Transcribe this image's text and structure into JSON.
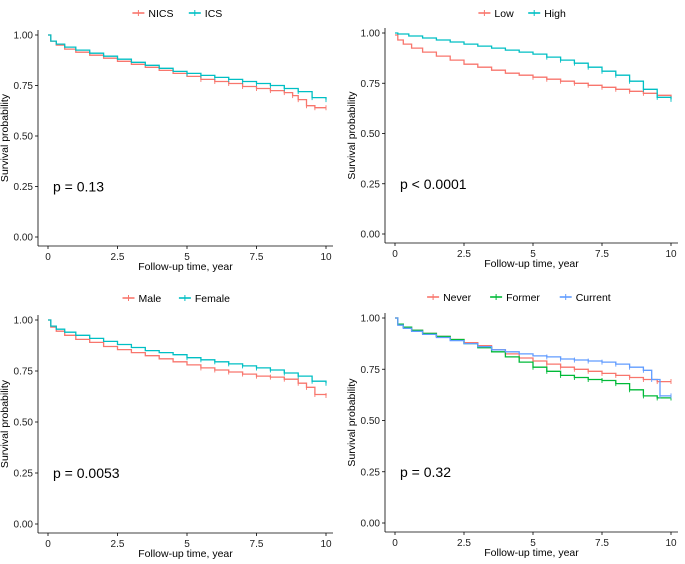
{
  "chart_data": [
    {
      "type": "line",
      "subtype": "kaplan-meier",
      "title": "",
      "xlabel": "Follow-up time, year",
      "ylabel": "Survival probability",
      "xlim": [
        0,
        10
      ],
      "ylim": [
        0,
        1
      ],
      "xticks": [
        0,
        2.5,
        5,
        7.5,
        10
      ],
      "xtick_labels": [
        "0",
        "2.5",
        "5",
        "7.5",
        "10"
      ],
      "yticks": [
        0,
        0.25,
        0.5,
        0.75,
        1
      ],
      "ytick_labels": [
        "0.00",
        "0.25",
        "0.50",
        "0.75",
        "1.00"
      ],
      "legend_position": "top",
      "annotation": "p = 0.13",
      "series": [
        {
          "name": "NICS",
          "color": "#F8766D",
          "x": [
            0,
            0.1,
            0.3,
            0.6,
            1.0,
            1.5,
            2.0,
            2.5,
            3.0,
            3.5,
            4.0,
            4.5,
            5.0,
            5.5,
            6.0,
            6.5,
            7.0,
            7.5,
            8.0,
            8.5,
            8.8,
            9.0,
            9.3,
            9.6,
            10.0
          ],
          "y": [
            1.0,
            0.97,
            0.95,
            0.93,
            0.915,
            0.9,
            0.885,
            0.87,
            0.855,
            0.84,
            0.825,
            0.81,
            0.795,
            0.78,
            0.77,
            0.76,
            0.745,
            0.735,
            0.725,
            0.715,
            0.7,
            0.68,
            0.65,
            0.64,
            0.64
          ]
        },
        {
          "name": "ICS",
          "color": "#00BFC4",
          "x": [
            0,
            0.1,
            0.3,
            0.6,
            1.0,
            1.5,
            2.0,
            2.5,
            3.0,
            3.5,
            4.0,
            4.5,
            5.0,
            5.5,
            6.0,
            6.5,
            7.0,
            7.5,
            8.0,
            8.5,
            9.0,
            9.5,
            10.0
          ],
          "y": [
            1.0,
            0.97,
            0.955,
            0.94,
            0.925,
            0.91,
            0.895,
            0.88,
            0.865,
            0.85,
            0.835,
            0.82,
            0.81,
            0.8,
            0.79,
            0.78,
            0.77,
            0.76,
            0.75,
            0.735,
            0.72,
            0.69,
            0.68
          ]
        }
      ]
    },
    {
      "type": "line",
      "subtype": "kaplan-meier",
      "title": "",
      "xlabel": "Follow-up time, year",
      "ylabel": "Survival probability",
      "xlim": [
        0,
        10
      ],
      "ylim": [
        0,
        1
      ],
      "xticks": [
        0,
        2.5,
        5,
        7.5,
        10
      ],
      "xtick_labels": [
        "0",
        "2.5",
        "5",
        "7.5",
        "10"
      ],
      "yticks": [
        0,
        0.25,
        0.5,
        0.75,
        1
      ],
      "ytick_labels": [
        "0.00",
        "0.25",
        "0.50",
        "0.75",
        "1.00"
      ],
      "legend_position": "top",
      "annotation": "p < 0.0001",
      "series": [
        {
          "name": "Low",
          "color": "#F8766D",
          "x": [
            0,
            0.1,
            0.3,
            0.6,
            1.0,
            1.5,
            2.0,
            2.5,
            3.0,
            3.5,
            4.0,
            4.5,
            5.0,
            5.5,
            6.0,
            6.5,
            7.0,
            7.5,
            8.0,
            8.5,
            9.0,
            9.5,
            10.0
          ],
          "y": [
            0.99,
            0.965,
            0.945,
            0.925,
            0.905,
            0.885,
            0.865,
            0.845,
            0.83,
            0.815,
            0.8,
            0.79,
            0.78,
            0.77,
            0.76,
            0.75,
            0.74,
            0.73,
            0.72,
            0.71,
            0.7,
            0.69,
            0.68
          ]
        },
        {
          "name": "High",
          "color": "#00BFC4",
          "x": [
            0,
            0.1,
            0.5,
            1.0,
            1.5,
            2.0,
            2.5,
            3.0,
            3.5,
            4.0,
            4.5,
            5.0,
            5.5,
            6.0,
            6.5,
            7.0,
            7.5,
            8.0,
            8.5,
            9.0,
            9.5,
            10.0
          ],
          "y": [
            1.0,
            0.995,
            0.985,
            0.975,
            0.965,
            0.955,
            0.945,
            0.935,
            0.925,
            0.915,
            0.905,
            0.895,
            0.88,
            0.865,
            0.85,
            0.83,
            0.81,
            0.79,
            0.76,
            0.72,
            0.68,
            0.67
          ]
        }
      ]
    },
    {
      "type": "line",
      "subtype": "kaplan-meier",
      "title": "",
      "xlabel": "Follow-up time, year",
      "ylabel": "Survival probability",
      "xlim": [
        0,
        10
      ],
      "ylim": [
        0,
        1
      ],
      "xticks": [
        0,
        2.5,
        5,
        7.5,
        10
      ],
      "xtick_labels": [
        "0",
        "2.5",
        "5",
        "7.5",
        "10"
      ],
      "yticks": [
        0,
        0.25,
        0.5,
        0.75,
        1
      ],
      "ytick_labels": [
        "0.00",
        "0.25",
        "0.50",
        "0.75",
        "1.00"
      ],
      "legend_position": "top",
      "annotation": "p = 0.0053",
      "series": [
        {
          "name": "Male",
          "color": "#F8766D",
          "x": [
            0,
            0.1,
            0.3,
            0.6,
            1.0,
            1.5,
            2.0,
            2.5,
            3.0,
            3.5,
            4.0,
            4.5,
            5.0,
            5.5,
            6.0,
            6.5,
            7.0,
            7.5,
            8.0,
            8.5,
            9.0,
            9.3,
            9.6,
            10.0
          ],
          "y": [
            1.0,
            0.965,
            0.945,
            0.925,
            0.905,
            0.89,
            0.87,
            0.855,
            0.84,
            0.825,
            0.81,
            0.795,
            0.78,
            0.765,
            0.755,
            0.745,
            0.735,
            0.725,
            0.72,
            0.71,
            0.69,
            0.67,
            0.635,
            0.63
          ]
        },
        {
          "name": "Female",
          "color": "#00BFC4",
          "x": [
            0,
            0.1,
            0.3,
            0.6,
            1.0,
            1.5,
            2.0,
            2.5,
            3.0,
            3.5,
            4.0,
            4.5,
            5.0,
            5.5,
            6.0,
            6.5,
            7.0,
            7.5,
            8.0,
            8.5,
            9.0,
            9.5,
            10.0
          ],
          "y": [
            1.0,
            0.97,
            0.955,
            0.94,
            0.925,
            0.91,
            0.895,
            0.88,
            0.865,
            0.85,
            0.84,
            0.83,
            0.815,
            0.805,
            0.795,
            0.785,
            0.775,
            0.765,
            0.755,
            0.74,
            0.725,
            0.7,
            0.69
          ]
        }
      ]
    },
    {
      "type": "line",
      "subtype": "kaplan-meier",
      "title": "",
      "xlabel": "Follow-up time, year",
      "ylabel": "Survival probability",
      "xlim": [
        0,
        10
      ],
      "ylim": [
        0,
        1
      ],
      "xticks": [
        0,
        2.5,
        5,
        7.5,
        10
      ],
      "xtick_labels": [
        "0",
        "2.5",
        "5",
        "7.5",
        "10"
      ],
      "yticks": [
        0,
        0.25,
        0.5,
        0.75,
        1
      ],
      "ytick_labels": [
        "0.00",
        "0.25",
        "0.50",
        "0.75",
        "1.00"
      ],
      "legend_position": "top",
      "annotation": "p = 0.32",
      "series": [
        {
          "name": "Never",
          "color": "#F8766D",
          "x": [
            0,
            0.1,
            0.3,
            0.6,
            1.0,
            1.5,
            2.0,
            2.5,
            3.0,
            3.5,
            4.0,
            4.5,
            5.0,
            5.5,
            6.0,
            6.5,
            7.0,
            7.5,
            8.0,
            8.5,
            9.0,
            9.5,
            10.0
          ],
          "y": [
            1.0,
            0.97,
            0.955,
            0.94,
            0.925,
            0.91,
            0.895,
            0.88,
            0.865,
            0.845,
            0.825,
            0.805,
            0.79,
            0.775,
            0.76,
            0.75,
            0.74,
            0.73,
            0.72,
            0.71,
            0.7,
            0.69,
            0.69
          ]
        },
        {
          "name": "Former",
          "color": "#00BA38",
          "x": [
            0,
            0.1,
            0.3,
            0.6,
            1.0,
            1.5,
            2.0,
            2.5,
            3.0,
            3.5,
            4.0,
            4.5,
            5.0,
            5.5,
            6.0,
            6.5,
            7.0,
            7.5,
            8.0,
            8.5,
            9.0,
            9.5,
            10.0
          ],
          "y": [
            1.0,
            0.97,
            0.955,
            0.94,
            0.925,
            0.91,
            0.895,
            0.875,
            0.855,
            0.835,
            0.81,
            0.785,
            0.76,
            0.74,
            0.72,
            0.71,
            0.7,
            0.695,
            0.68,
            0.65,
            0.62,
            0.61,
            0.61
          ]
        },
        {
          "name": "Current",
          "color": "#619CFF",
          "x": [
            0,
            0.1,
            0.3,
            0.6,
            1.0,
            1.5,
            2.0,
            2.5,
            3.0,
            3.5,
            4.0,
            4.5,
            5.0,
            5.5,
            6.0,
            6.5,
            7.0,
            7.5,
            8.0,
            8.5,
            9.0,
            9.3,
            9.6,
            10.0
          ],
          "y": [
            1.0,
            0.965,
            0.95,
            0.935,
            0.92,
            0.905,
            0.89,
            0.875,
            0.86,
            0.845,
            0.835,
            0.825,
            0.815,
            0.81,
            0.8,
            0.795,
            0.79,
            0.785,
            0.775,
            0.76,
            0.745,
            0.7,
            0.62,
            0.62
          ]
        }
      ]
    }
  ]
}
